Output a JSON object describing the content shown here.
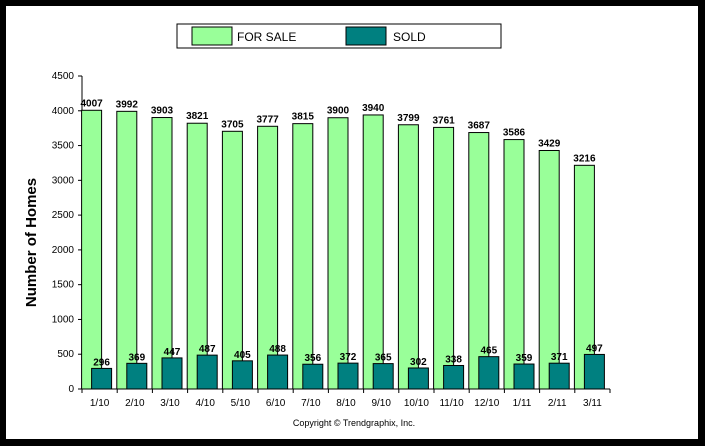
{
  "chart_data": {
    "type": "bar",
    "categories": [
      "1/10",
      "2/10",
      "3/10",
      "4/10",
      "5/10",
      "6/10",
      "7/10",
      "8/10",
      "9/10",
      "10/10",
      "11/10",
      "12/10",
      "1/11",
      "2/11",
      "3/11"
    ],
    "series": [
      {
        "name": "FOR SALE",
        "color": "#99ff99",
        "values": [
          4007,
          3992,
          3903,
          3821,
          3705,
          3777,
          3815,
          3900,
          3940,
          3799,
          3761,
          3687,
          3586,
          3429,
          3216
        ]
      },
      {
        "name": "SOLD",
        "color": "#008080",
        "values": [
          296,
          369,
          447,
          487,
          405,
          488,
          356,
          372,
          365,
          302,
          338,
          465,
          359,
          371,
          497
        ]
      }
    ],
    "title": "",
    "xlabel": "",
    "ylabel": "Number of Homes",
    "ylim": [
      0,
      4500
    ],
    "yticks": [
      0,
      500,
      1000,
      1500,
      2000,
      2500,
      3000,
      3500,
      4000,
      4500
    ],
    "grid": false,
    "legend_position": "top"
  },
  "copyright": "Copyright © Trendgraphix, Inc."
}
